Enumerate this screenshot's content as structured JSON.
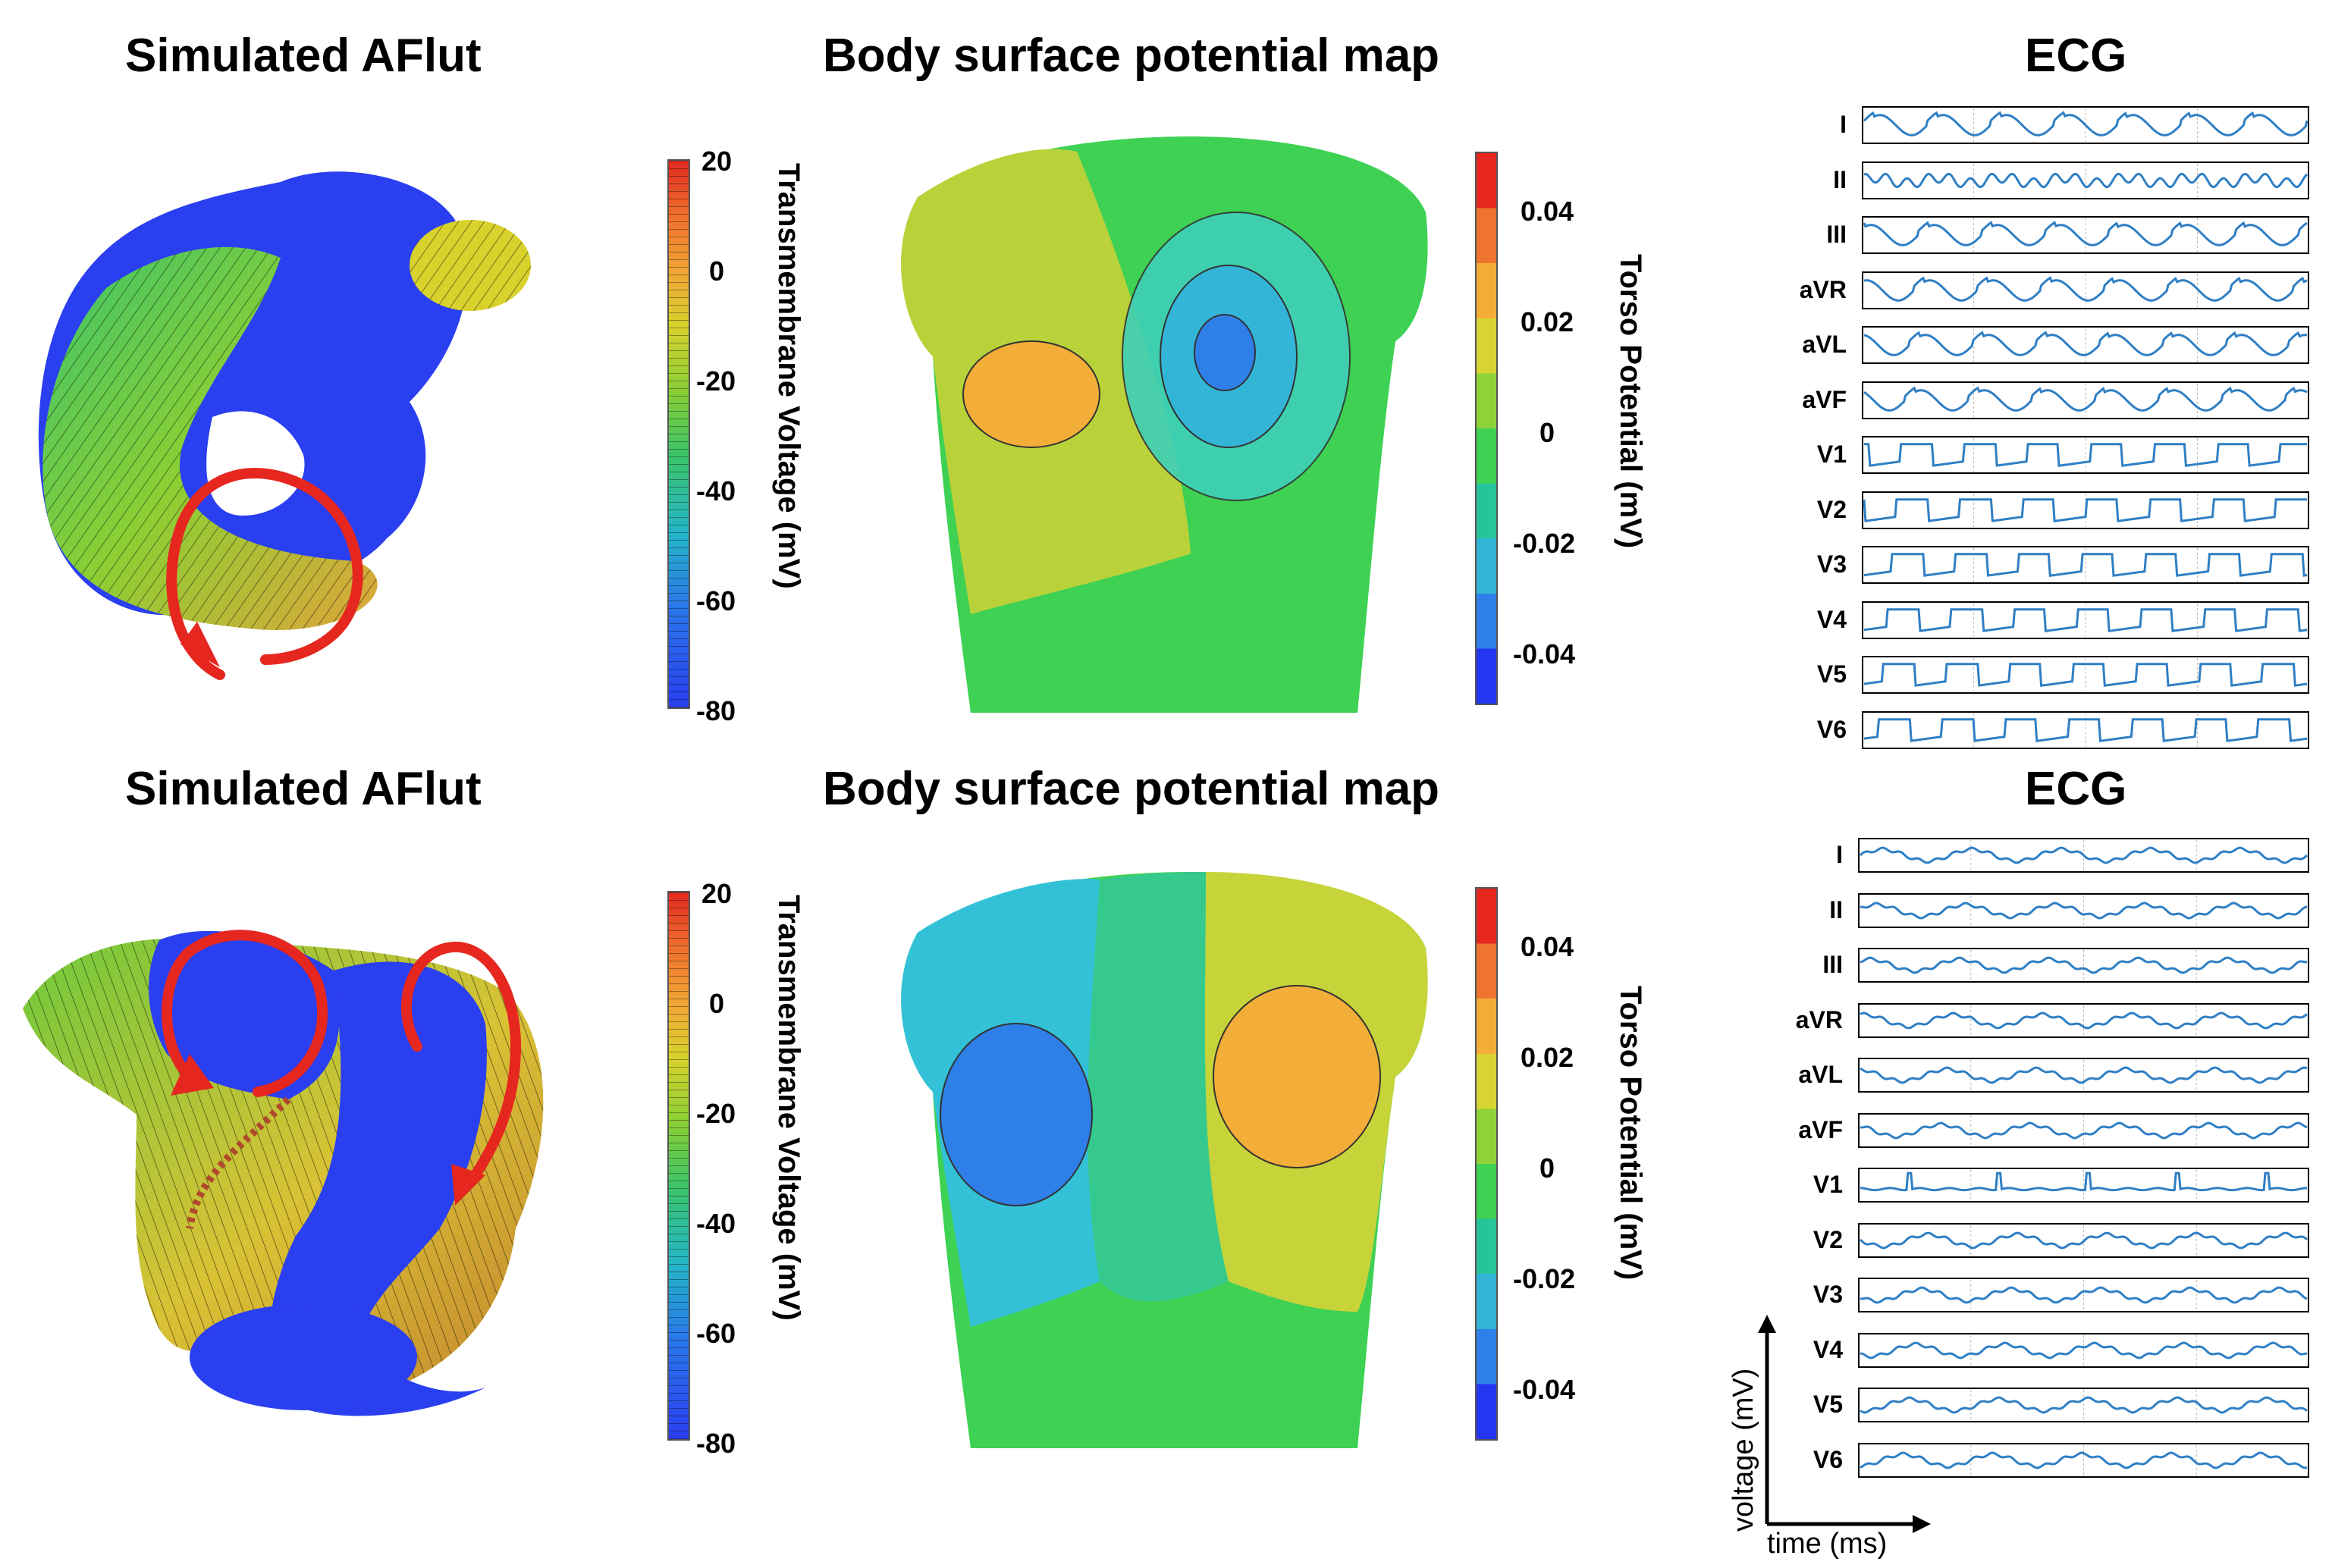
{
  "rows": [
    {
      "sim_title": "Simulated AFlut",
      "map_title": "Body surface potential map",
      "ecg_title": "ECG",
      "trans_ticks": [
        "20",
        "0",
        "-20",
        "-40",
        "-60",
        "-80"
      ],
      "trans_label": "Transmembrane Voltage (mV)",
      "torso_ticks": [
        "0.04",
        "0.02",
        "0",
        "-0.02",
        "-0.04"
      ],
      "torso_label": "Torso Potential (mV)",
      "leads": [
        "I",
        "II",
        "III",
        "aVR",
        "aVL",
        "aVF",
        "V1",
        "V2",
        "V3",
        "V4",
        "V5",
        "V6"
      ]
    },
    {
      "sim_title": "Simulated AFlut",
      "map_title": "Body surface potential map",
      "ecg_title": "ECG",
      "trans_ticks": [
        "20",
        "0",
        "-20",
        "-40",
        "-60",
        "-80"
      ],
      "trans_label": "Transmembrane Voltage (mV)",
      "torso_ticks": [
        "0.04",
        "0.02",
        "0",
        "-0.02",
        "-0.04"
      ],
      "torso_label": "Torso Potential (mV)",
      "leads": [
        "I",
        "II",
        "III",
        "aVR",
        "aVL",
        "aVF",
        "V1",
        "V2",
        "V3",
        "V4",
        "V5",
        "V6"
      ]
    }
  ],
  "axes": {
    "y_label": "voltage (mV)",
    "x_label": "time (ms)"
  },
  "colors": {
    "arrow": "#e5271f",
    "trace": "#2f7fc4",
    "tissue_blue": "#2a3ff0"
  }
}
